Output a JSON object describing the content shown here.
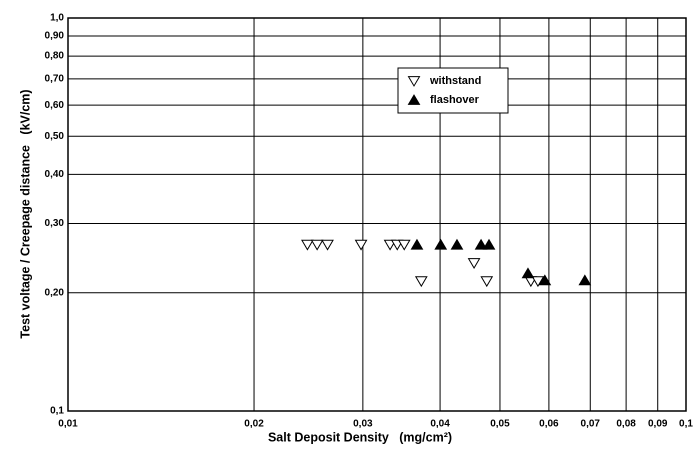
{
  "chart_data": {
    "type": "scatter",
    "x_label": "Salt Deposit Density   (mg/cm²)",
    "y_label": "Test voltage / Creepage distance   (kV/cm)",
    "xlog": true,
    "ylog": true,
    "grid": true,
    "legend": "upper center",
    "xlim": [
      0.01,
      0.1
    ],
    "ylim": [
      0.1,
      1.0
    ],
    "xticks": [
      {
        "value": 0.01,
        "label": "0,01"
      },
      {
        "value": 0.02,
        "label": "0,02"
      },
      {
        "value": 0.03,
        "label": "0,03"
      },
      {
        "value": 0.04,
        "label": "0,04"
      },
      {
        "value": 0.05,
        "label": "0,05"
      },
      {
        "value": 0.06,
        "label": "0,06"
      },
      {
        "value": 0.07,
        "label": "0,07"
      },
      {
        "value": 0.08,
        "label": "0,08"
      },
      {
        "value": 0.09,
        "label": "0,09"
      },
      {
        "value": 0.1,
        "label": "0,1"
      }
    ],
    "yticks": [
      {
        "value": 0.1,
        "label": "0,1"
      },
      {
        "value": 0.2,
        "label": "0,20"
      },
      {
        "value": 0.3,
        "label": "0,30"
      },
      {
        "value": 0.4,
        "label": "0,40"
      },
      {
        "value": 0.5,
        "label": "0,50"
      },
      {
        "value": 0.6,
        "label": "0,60"
      },
      {
        "value": 0.7,
        "label": "0,70"
      },
      {
        "value": 0.8,
        "label": "0,80"
      },
      {
        "value": 0.9,
        "label": "0,90"
      },
      {
        "value": 1.0,
        "label": "1,0"
      }
    ],
    "series": [
      {
        "name": "withstand",
        "color": "#ffffff",
        "marker": "triangle-down",
        "x": [
          0.0244,
          0.0253,
          0.0263,
          0.0298,
          0.0332,
          0.0341,
          0.035,
          0.0373,
          0.0454,
          0.0476,
          0.0561,
          0.0576
        ],
        "values": [
          0.265,
          0.265,
          0.265,
          0.265,
          0.265,
          0.265,
          0.265,
          0.214,
          0.238,
          0.214,
          0.214,
          0.214
        ]
      },
      {
        "name": "flashover",
        "color": "#000000",
        "marker": "triangle-up",
        "x": [
          0.0367,
          0.0401,
          0.0426,
          0.0466,
          0.048,
          0.0555,
          0.0591,
          0.0686
        ],
        "values": [
          0.265,
          0.265,
          0.265,
          0.265,
          0.265,
          0.224,
          0.215,
          0.215
        ]
      }
    ]
  }
}
